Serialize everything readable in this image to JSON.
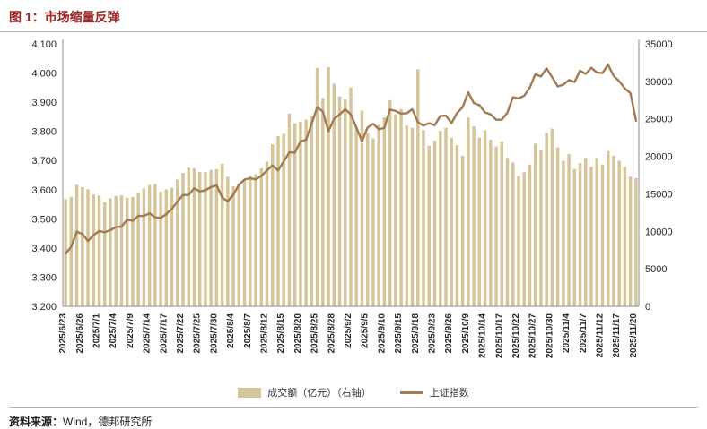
{
  "header": {
    "title": "图 1：市场缩量反弹"
  },
  "legend": {
    "volume": "成交额（亿元）（右轴）",
    "index": "上证指数"
  },
  "footer": {
    "label": "资料来源：",
    "text": "Wind，德邦研究所"
  },
  "colors": {
    "title": "#9c2723",
    "bar": "#d7c59a",
    "line": "#a17a50",
    "rule": "#bfae94",
    "axis": "#8c8c8c",
    "text": "#262626"
  },
  "chart_data": {
    "type": "bar+line",
    "title": "市场缩量反弹",
    "x_label_every": 3,
    "left_axis": {
      "min": 3200,
      "max": 4100,
      "tick_labels": [
        "3,200",
        "3,300",
        "3,400",
        "3,500",
        "3,600",
        "3,700",
        "3,800",
        "3,900",
        "4,000",
        "4,100"
      ]
    },
    "right_axis": {
      "min": 0,
      "max": 35000,
      "tick_labels": [
        "0",
        "5000",
        "10000",
        "15000",
        "20000",
        "25000",
        "30000",
        "35000"
      ]
    },
    "x": [
      "2025/6/23",
      "2025/6/24",
      "2025/6/25",
      "2025/6/26",
      "2025/6/27",
      "2025/6/30",
      "2025/7/1",
      "2025/7/2",
      "2025/7/3",
      "2025/7/4",
      "2025/7/7",
      "2025/7/8",
      "2025/7/9",
      "2025/7/10",
      "2025/7/11",
      "2025/7/14",
      "2025/7/15",
      "2025/7/16",
      "2025/7/17",
      "2025/7/18",
      "2025/7/21",
      "2025/7/22",
      "2025/7/23",
      "2025/7/24",
      "2025/7/25",
      "2025/7/28",
      "2025/7/29",
      "2025/7/30",
      "2025/7/31",
      "2025/8/1",
      "2025/8/4",
      "2025/8/5",
      "2025/8/6",
      "2025/8/7",
      "2025/8/8",
      "2025/8/11",
      "2025/8/12",
      "2025/8/13",
      "2025/8/14",
      "2025/8/15",
      "2025/8/18",
      "2025/8/19",
      "2025/8/20",
      "2025/8/21",
      "2025/8/22",
      "2025/8/25",
      "2025/8/26",
      "2025/8/27",
      "2025/8/28",
      "2025/8/29",
      "2025/9/1",
      "2025/9/2",
      "2025/9/3",
      "2025/9/4",
      "2025/9/5",
      "2025/9/8",
      "2025/9/9",
      "2025/9/10",
      "2025/9/11",
      "2025/9/12",
      "2025/9/15",
      "2025/9/16",
      "2025/9/17",
      "2025/9/18",
      "2025/9/19",
      "2025/9/22",
      "2025/9/23",
      "2025/9/24",
      "2025/9/25",
      "2025/9/26",
      "2025/9/29",
      "2025/9/30",
      "2025/10/9",
      "2025/10/10",
      "2025/10/13",
      "2025/10/14",
      "2025/10/15",
      "2025/10/16",
      "2025/10/17",
      "2025/10/20",
      "2025/10/21",
      "2025/10/22",
      "2025/10/23",
      "2025/10/24",
      "2025/10/27",
      "2025/10/28",
      "2025/10/29",
      "2025/10/30",
      "2025/10/31",
      "2025/11/3",
      "2025/11/4",
      "2025/11/5",
      "2025/11/6",
      "2025/11/7",
      "2025/11/10",
      "2025/11/11",
      "2025/11/12",
      "2025/11/13",
      "2025/11/14",
      "2025/11/17",
      "2025/11/18",
      "2025/11/19",
      "2025/11/20"
    ],
    "series": [
      {
        "name": "成交额（亿元）（右轴）",
        "type": "bar",
        "axis": "right",
        "values": [
          14300,
          14600,
          16200,
          15900,
          15600,
          14900,
          14800,
          13900,
          14400,
          14700,
          14800,
          14500,
          14600,
          15100,
          15700,
          16200,
          16300,
          15300,
          15600,
          15800,
          16900,
          17800,
          18500,
          18400,
          17900,
          17900,
          18200,
          18300,
          19000,
          17300,
          16000,
          16400,
          16900,
          17400,
          17600,
          18400,
          19300,
          21600,
          22700,
          23000,
          25700,
          24400,
          24600,
          24900,
          25400,
          31800,
          27800,
          31900,
          29700,
          28000,
          27600,
          29200,
          23900,
          26100,
          23100,
          22400,
          24200,
          25200,
          27500,
          25600,
          26300,
          24100,
          23800,
          31600,
          23500,
          21400,
          22100,
          23400,
          23800,
          22500,
          21500,
          20100,
          25200,
          24000,
          22500,
          23500,
          22200,
          21300,
          22000,
          19800,
          19200,
          17400,
          17900,
          18900,
          21700,
          20800,
          23100,
          23700,
          21200,
          19400,
          20300,
          18300,
          19100,
          19800,
          18600,
          19800,
          18900,
          20700,
          20100,
          19400,
          18600,
          17300,
          17100
        ]
      },
      {
        "name": "上证指数",
        "type": "line",
        "axis": "left",
        "values": [
          3381,
          3404,
          3456,
          3448,
          3424,
          3444,
          3458,
          3454,
          3461,
          3472,
          3473,
          3497,
          3493,
          3510,
          3510,
          3519,
          3505,
          3503,
          3516,
          3534,
          3559,
          3582,
          3582,
          3605,
          3594,
          3598,
          3609,
          3615,
          3573,
          3560,
          3583,
          3617,
          3635,
          3639,
          3635,
          3647,
          3666,
          3683,
          3666,
          3697,
          3728,
          3727,
          3766,
          3771,
          3826,
          3883,
          3868,
          3800,
          3843,
          3858,
          3876,
          3858,
          3813,
          3766,
          3813,
          3826,
          3807,
          3812,
          3875,
          3870,
          3861,
          3862,
          3876,
          3831,
          3820,
          3828,
          3821,
          3853,
          3854,
          3828,
          3863,
          3883,
          3934,
          3897,
          3890,
          3865,
          3858,
          3840,
          3840,
          3864,
          3917,
          3913,
          3922,
          3950,
          3996,
          3988,
          4016,
          3986,
          3954,
          3960,
          3976,
          3969,
          4008,
          3997,
          4018,
          4002,
          4000,
          4029,
          3990,
          3972,
          3947,
          3931,
          3836
        ]
      }
    ]
  }
}
